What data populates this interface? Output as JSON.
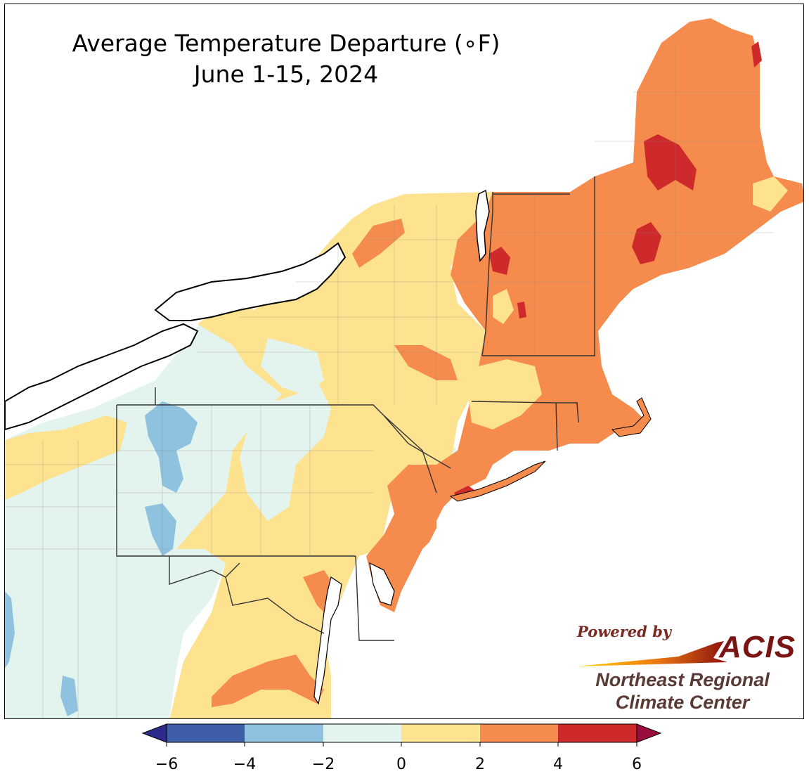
{
  "title": {
    "line1": "Average Temperature Departure (∘F)",
    "line2": "June 1-15, 2024"
  },
  "colors": {
    "lt_neg4": "#3f5ea9",
    "neg4_neg2": "#8ec2df",
    "neg2_0": "#e3f3ee",
    "0_2": "#fde28f",
    "2_4": "#f68b4e",
    "4_6": "#cf2a2b",
    "gt_6": "#9b0d3c",
    "under_min": "#2c2a8a",
    "water": "#ffffff",
    "border": "#1a1a1a"
  },
  "legend": {
    "ticks": [
      "−6",
      "−4",
      "−2",
      "0",
      "2",
      "4",
      "6"
    ],
    "values": [
      -6,
      -4,
      -2,
      0,
      2,
      4,
      6
    ]
  },
  "logo": {
    "powered": "Powered by",
    "acis": "ACIS",
    "org_line1": "Northeast Regional",
    "org_line2": "Climate Center"
  }
}
